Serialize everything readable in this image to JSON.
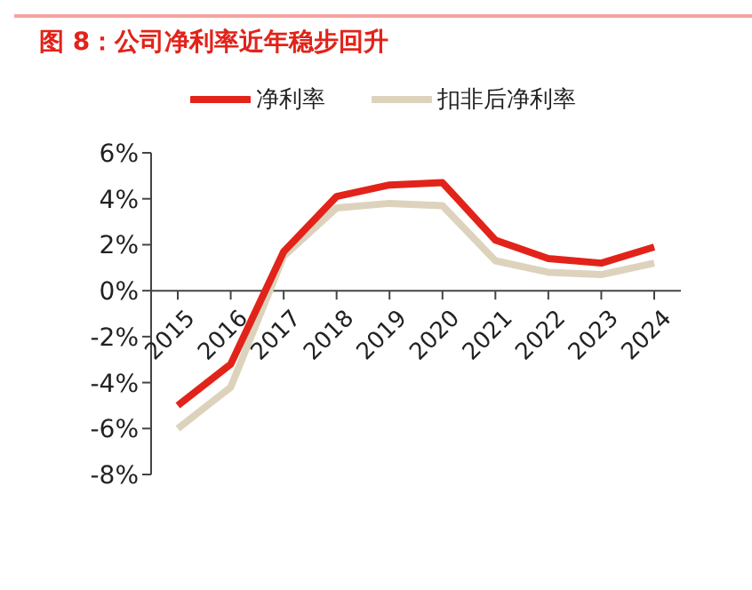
{
  "chart_data": {
    "type": "line",
    "title": "图 8：公司净利率近年稳步回升",
    "categories": [
      "2015",
      "2016",
      "2017",
      "2018",
      "2019",
      "2020",
      "2021",
      "2022",
      "2023",
      "2024"
    ],
    "series": [
      {
        "name": "净利率",
        "color": "#e2231a",
        "values": [
          -5.0,
          -3.2,
          1.7,
          4.1,
          4.6,
          4.7,
          2.2,
          1.4,
          1.2,
          1.9
        ]
      },
      {
        "name": "扣非后净利率",
        "color": "#ddd3bd",
        "values": [
          -6.0,
          -4.2,
          1.5,
          3.6,
          3.8,
          3.7,
          1.3,
          0.8,
          0.7,
          1.2
        ]
      }
    ],
    "ylim": [
      -8,
      6
    ],
    "yticks": [
      {
        "value": -8,
        "label": "-8%"
      },
      {
        "value": -6,
        "label": "-6%"
      },
      {
        "value": -4,
        "label": "-4%"
      },
      {
        "value": -2,
        "label": "-2%"
      },
      {
        "value": 0,
        "label": "0%"
      },
      {
        "value": 2,
        "label": "2%"
      },
      {
        "value": 4,
        "label": "4%"
      },
      {
        "value": 6,
        "label": "6%"
      }
    ],
    "grid": false,
    "legend": "top",
    "marker": "none",
    "line_style": "solid"
  }
}
